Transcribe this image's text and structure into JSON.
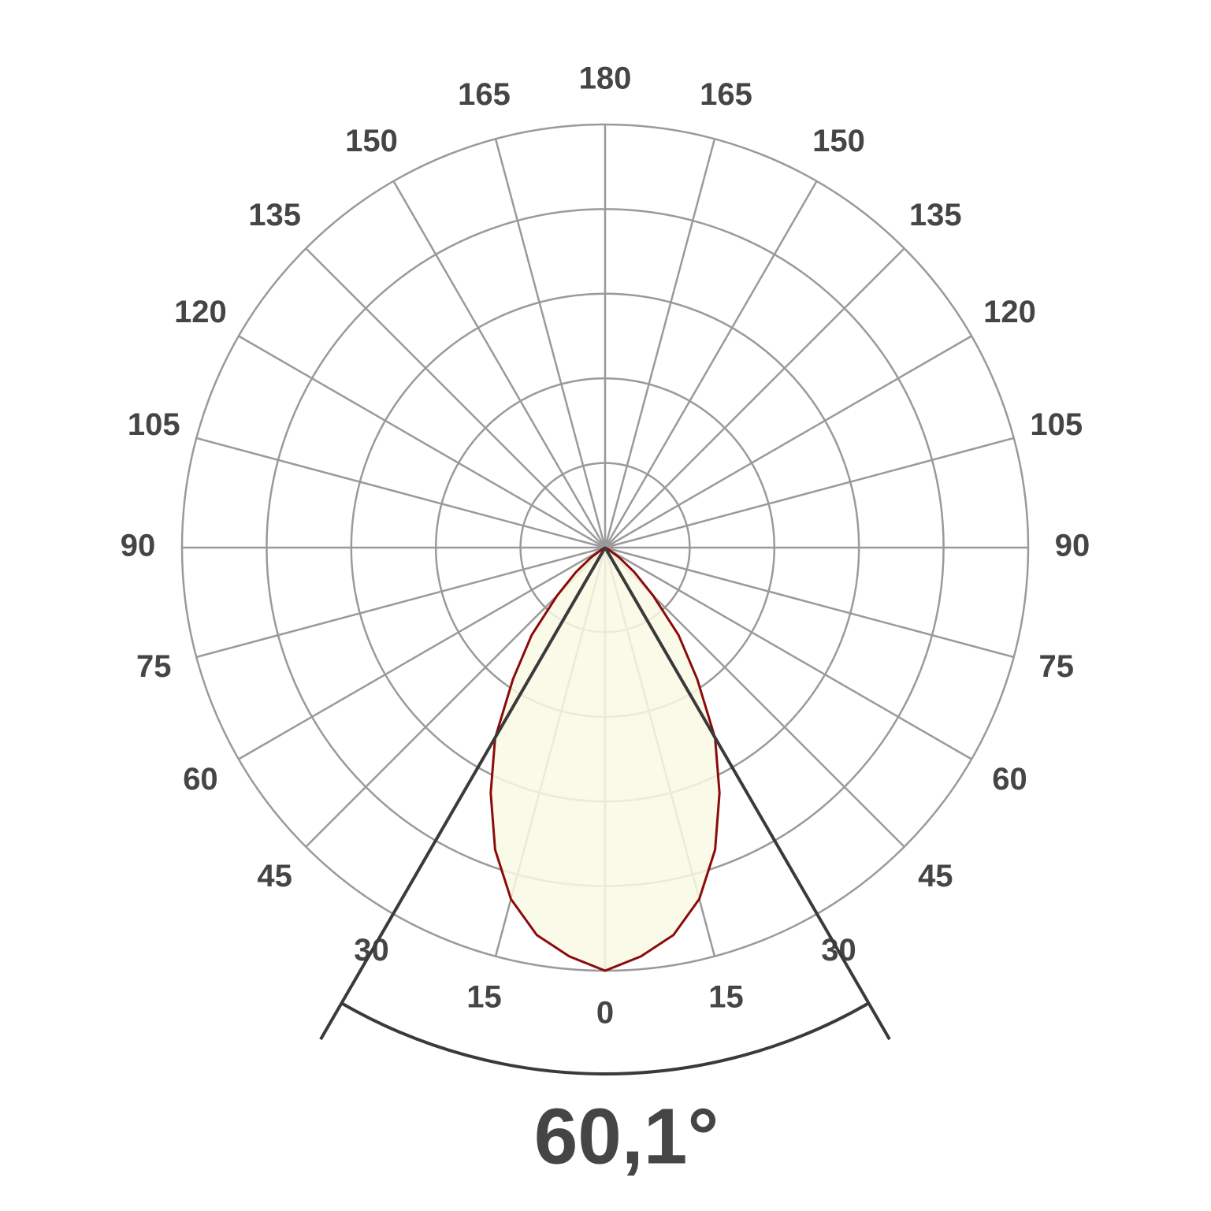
{
  "chart_data": {
    "type": "polar",
    "rlim": [
      0,
      100
    ],
    "rticks": [
      20,
      40,
      60,
      80,
      100
    ],
    "angle_ticks": [
      0,
      15,
      30,
      45,
      60,
      75,
      90,
      105,
      120,
      135,
      150,
      165,
      180
    ],
    "grid": true,
    "series": [
      {
        "color": "#8b0a0a",
        "fill": "#f8f9e4",
        "angles": [
          -65,
          -60,
          -55,
          -50,
          -45,
          -40,
          -35,
          -30,
          -25,
          -20,
          -15,
          -10,
          -5,
          0,
          5,
          10,
          15,
          20,
          25,
          30,
          35,
          40,
          45,
          50,
          55,
          60,
          65
        ],
        "values": [
          0,
          1,
          4,
          9,
          16,
          27,
          38,
          52,
          64,
          76,
          86,
          93,
          97,
          100,
          97,
          93,
          86,
          76,
          64,
          52,
          38,
          27,
          16,
          9,
          4,
          1,
          0
        ]
      }
    ],
    "beam_angle": {
      "value": 60.1,
      "label": "60,1°"
    }
  }
}
